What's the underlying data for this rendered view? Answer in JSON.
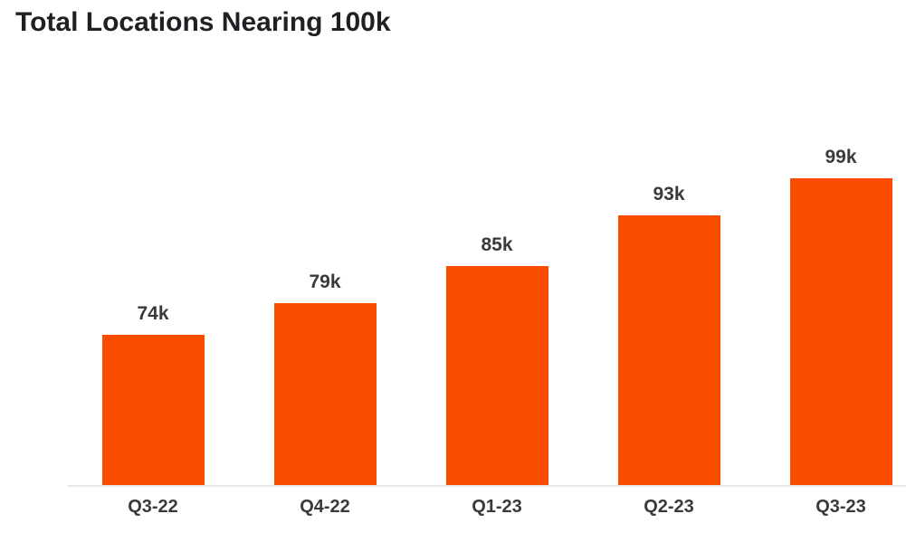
{
  "title": "Total Locations Nearing 100k",
  "chart_data": {
    "type": "bar",
    "title": "Total Locations Nearing 100k",
    "categories": [
      "Q3-22",
      "Q4-22",
      "Q1-23",
      "Q2-23",
      "Q3-23"
    ],
    "values": [
      74,
      79,
      85,
      93,
      99
    ],
    "value_labels": [
      "74k",
      "79k",
      "85k",
      "93k",
      "99k"
    ],
    "unit": "k locations",
    "xlabel": "",
    "ylabel": "",
    "ylim": [
      50,
      105
    ],
    "grid": false,
    "legend": false,
    "y_axis_visible": false,
    "colors": {
      "bar": "#fa4d00",
      "title_text": "#1f2023",
      "label_text": "#3a3a3a",
      "axis_line": "#e9e9e9",
      "background": "#ffffff"
    }
  }
}
